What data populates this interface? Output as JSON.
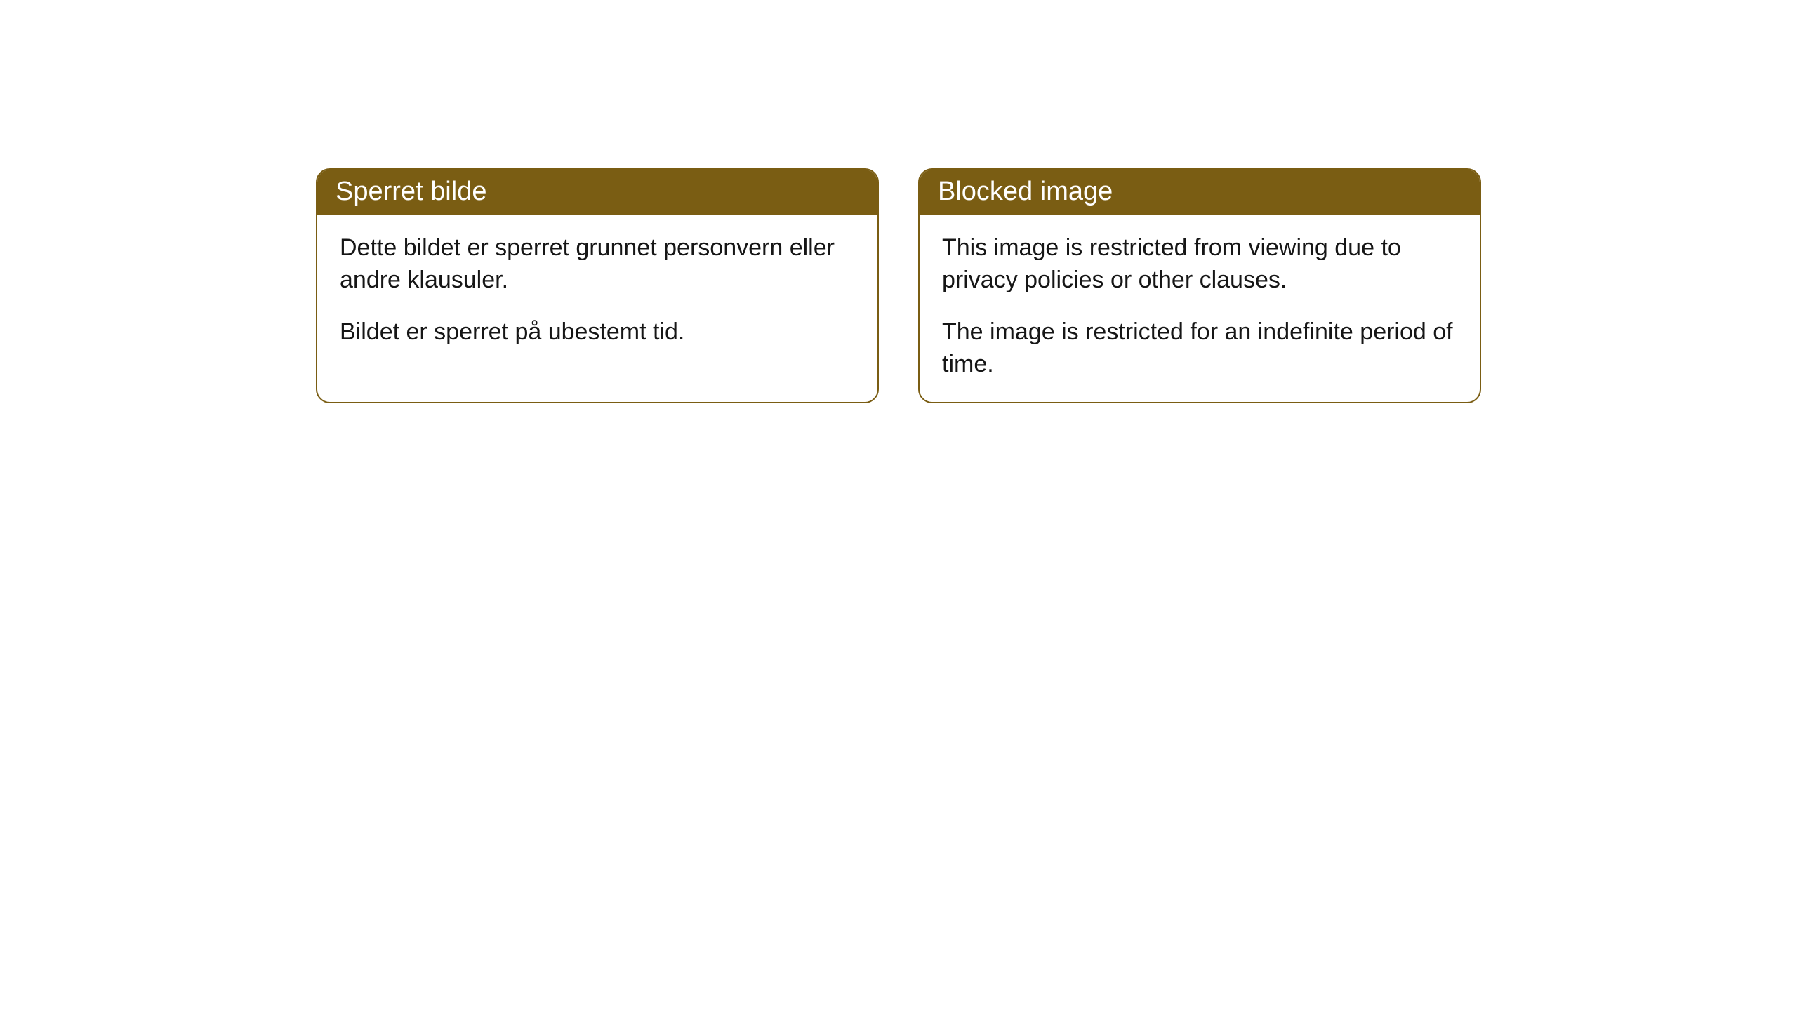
{
  "cards": [
    {
      "header": "Sperret bilde",
      "paragraph1": "Dette bildet er sperret grunnet personvern eller andre klausuler.",
      "paragraph2": "Bildet er sperret på ubestemt tid."
    },
    {
      "header": "Blocked image",
      "paragraph1": "This image is restricted from viewing due to privacy policies or other clauses.",
      "paragraph2": "The image is restricted for an indefinite period of time."
    }
  ],
  "styling": {
    "header_background": "#7a5d13",
    "header_text_color": "#ffffff",
    "body_text_color": "#161616",
    "border_color": "#7a5d13",
    "border_radius": 20,
    "card_background": "#ffffff",
    "page_background": "#ffffff",
    "header_fontsize": 38,
    "body_fontsize": 34
  }
}
